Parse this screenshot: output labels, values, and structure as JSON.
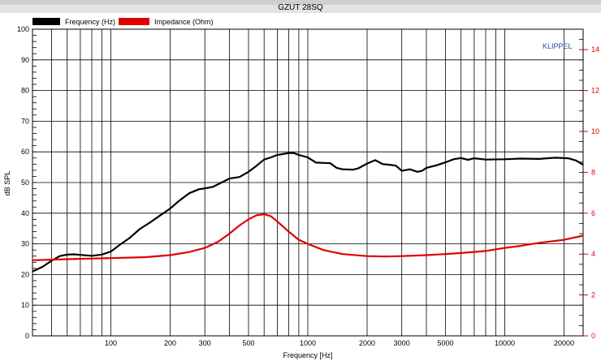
{
  "chart_data": {
    "type": "line",
    "title": "GZUT 28SQ",
    "brand": "KLIPPEL",
    "xlabel": "Frequency [Hz]",
    "ylabel": "dB SPL",
    "xscale": "log",
    "xlim": [
      40,
      25000
    ],
    "ylim": [
      0,
      100
    ],
    "y2lim": [
      0,
      15
    ],
    "grid": true,
    "legend_position": "top-left",
    "x_tick_labels": [
      {
        "v": 100,
        "t": "100"
      },
      {
        "v": 200,
        "t": "200"
      },
      {
        "v": 300,
        "t": "300"
      },
      {
        "v": 500,
        "t": "500"
      },
      {
        "v": 1000,
        "t": "1000"
      },
      {
        "v": 2000,
        "t": "2000"
      },
      {
        "v": 3000,
        "t": "3000"
      },
      {
        "v": 5000,
        "t": "5000"
      },
      {
        "v": 10000,
        "t": "10000"
      },
      {
        "v": 20000,
        "t": "20000"
      }
    ],
    "y_ticks": [
      0,
      10,
      20,
      30,
      40,
      50,
      60,
      70,
      80,
      90,
      100
    ],
    "y2_ticks": [
      0,
      2,
      4,
      6,
      8,
      10,
      12,
      14
    ],
    "series": [
      {
        "name": "Frequency (Hz)",
        "color": "#000000",
        "axis": "left",
        "points": [
          [
            40,
            21
          ],
          [
            45,
            22.5
          ],
          [
            50,
            24.5
          ],
          [
            55,
            26
          ],
          [
            60,
            26.5
          ],
          [
            65,
            26.6
          ],
          [
            70,
            26.4
          ],
          [
            80,
            26.1
          ],
          [
            90,
            26.5
          ],
          [
            100,
            27.5
          ],
          [
            110,
            29.5
          ],
          [
            125,
            32
          ],
          [
            140,
            34.8
          ],
          [
            160,
            37.2
          ],
          [
            180,
            39.5
          ],
          [
            200,
            41.5
          ],
          [
            220,
            43.8
          ],
          [
            250,
            46.5
          ],
          [
            280,
            47.8
          ],
          [
            300,
            48.1
          ],
          [
            330,
            48.6
          ],
          [
            360,
            49.8
          ],
          [
            400,
            51.3
          ],
          [
            450,
            51.8
          ],
          [
            500,
            53.5
          ],
          [
            550,
            55.5
          ],
          [
            600,
            57.5
          ],
          [
            650,
            58.2
          ],
          [
            700,
            59
          ],
          [
            800,
            59.6
          ],
          [
            850,
            59.6
          ],
          [
            900,
            59
          ],
          [
            1000,
            58.2
          ],
          [
            1100,
            56.5
          ],
          [
            1200,
            56.4
          ],
          [
            1300,
            56.3
          ],
          [
            1400,
            54.8
          ],
          [
            1500,
            54.3
          ],
          [
            1700,
            54.2
          ],
          [
            1800,
            54.6
          ],
          [
            2000,
            56.2
          ],
          [
            2200,
            57.3
          ],
          [
            2400,
            56
          ],
          [
            2600,
            55.8
          ],
          [
            2800,
            55.5
          ],
          [
            3000,
            53.8
          ],
          [
            3300,
            54.3
          ],
          [
            3600,
            53.5
          ],
          [
            3800,
            53.8
          ],
          [
            4000,
            54.8
          ],
          [
            4500,
            55.6
          ],
          [
            5000,
            56.6
          ],
          [
            5500,
            57.6
          ],
          [
            6000,
            58
          ],
          [
            6500,
            57.4
          ],
          [
            7000,
            57.9
          ],
          [
            8000,
            57.5
          ],
          [
            10000,
            57.6
          ],
          [
            12000,
            57.8
          ],
          [
            15000,
            57.7
          ],
          [
            18000,
            58.1
          ],
          [
            21000,
            57.9
          ],
          [
            23000,
            57.2
          ],
          [
            25000,
            55.8
          ]
        ]
      },
      {
        "name": "Impedance (Ohm)",
        "color": "#e00000",
        "axis": "right",
        "points": [
          [
            40,
            3.7
          ],
          [
            60,
            3.75
          ],
          [
            80,
            3.78
          ],
          [
            100,
            3.8
          ],
          [
            150,
            3.85
          ],
          [
            200,
            3.95
          ],
          [
            250,
            4.1
          ],
          [
            300,
            4.3
          ],
          [
            350,
            4.6
          ],
          [
            400,
            5
          ],
          [
            450,
            5.4
          ],
          [
            500,
            5.7
          ],
          [
            550,
            5.9
          ],
          [
            600,
            5.95
          ],
          [
            650,
            5.85
          ],
          [
            700,
            5.6
          ],
          [
            800,
            5.1
          ],
          [
            900,
            4.7
          ],
          [
            1000,
            4.5
          ],
          [
            1200,
            4.2
          ],
          [
            1500,
            4
          ],
          [
            2000,
            3.9
          ],
          [
            2500,
            3.88
          ],
          [
            3000,
            3.9
          ],
          [
            4000,
            3.95
          ],
          [
            5000,
            4
          ],
          [
            6000,
            4.05
          ],
          [
            8000,
            4.15
          ],
          [
            10000,
            4.3
          ],
          [
            12000,
            4.4
          ],
          [
            15000,
            4.55
          ],
          [
            20000,
            4.7
          ],
          [
            25000,
            4.9
          ]
        ]
      }
    ]
  }
}
